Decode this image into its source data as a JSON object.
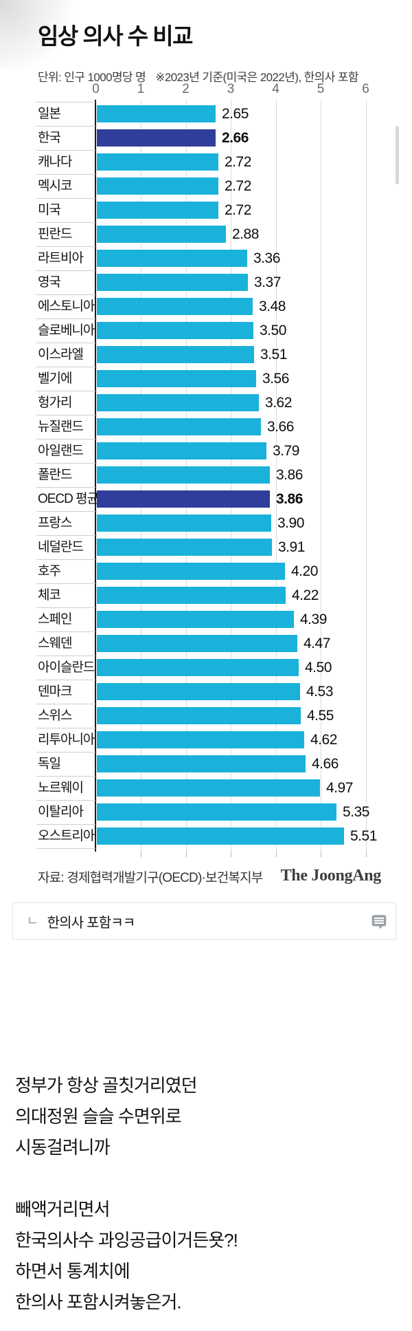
{
  "chart_data": {
    "type": "bar",
    "orientation": "horizontal",
    "title": "임상 의사 수 비교",
    "unit_note": "단위: 인구 1000명당 명",
    "ref_note": "※2023년 기준(미국은 2022년), 한의사 포함",
    "xlim": [
      0,
      6
    ],
    "xticks": [
      0,
      1,
      2,
      3,
      4,
      5,
      6
    ],
    "grid": true,
    "legend": "none",
    "bar_color": "#1ab2da",
    "highlight_color": "#2f3e9b",
    "rows": [
      {
        "label": "일본",
        "value": 2.65
      },
      {
        "label": "한국",
        "value": 2.66,
        "highlight": true
      },
      {
        "label": "캐나다",
        "value": 2.72
      },
      {
        "label": "멕시코",
        "value": 2.72
      },
      {
        "label": "미국",
        "value": 2.72
      },
      {
        "label": "핀란드",
        "value": 2.88
      },
      {
        "label": "라트비아",
        "value": 3.36
      },
      {
        "label": "영국",
        "value": 3.37
      },
      {
        "label": "에스토니아",
        "value": 3.48
      },
      {
        "label": "슬로베니아",
        "value": 3.5
      },
      {
        "label": "이스라엘",
        "value": 3.51
      },
      {
        "label": "벨기에",
        "value": 3.56
      },
      {
        "label": "헝가리",
        "value": 3.62
      },
      {
        "label": "뉴질랜드",
        "value": 3.66
      },
      {
        "label": "아일랜드",
        "value": 3.79
      },
      {
        "label": "폴란드",
        "value": 3.86
      },
      {
        "label": "OECD 평균",
        "value": 3.86,
        "highlight": true
      },
      {
        "label": "프랑스",
        "value": 3.9
      },
      {
        "label": "네덜란드",
        "value": 3.91
      },
      {
        "label": "호주",
        "value": 4.2
      },
      {
        "label": "체코",
        "value": 4.22
      },
      {
        "label": "스페인",
        "value": 4.39
      },
      {
        "label": "스웨덴",
        "value": 4.47
      },
      {
        "label": "아이슬란드",
        "value": 4.5
      },
      {
        "label": "덴마크",
        "value": 4.53
      },
      {
        "label": "스위스",
        "value": 4.55
      },
      {
        "label": "리투아니아",
        "value": 4.62
      },
      {
        "label": "독일",
        "value": 4.66
      },
      {
        "label": "노르웨이",
        "value": 4.97
      },
      {
        "label": "이탈리아",
        "value": 5.35
      },
      {
        "label": "오스트리아",
        "value": 5.51
      }
    ],
    "source": "자료: 경제협력개발기구(OECD)·보건복지부",
    "credit": "The JoongAng"
  },
  "comment": {
    "reply_mark": "ㄴ",
    "text": "한의사 포함ㅋㅋ",
    "icon": "comment-bubble-icon"
  },
  "commentary": {
    "lines": [
      "정부가 항상 골칫거리였던",
      "의대정원 슬슬 수면위로",
      "시동걸려니까",
      "",
      "빼액거리면서",
      "한국의사수 과잉공급이거든욧?!",
      "하면서 통계치에",
      "한의사 포함시켜놓은거."
    ]
  }
}
